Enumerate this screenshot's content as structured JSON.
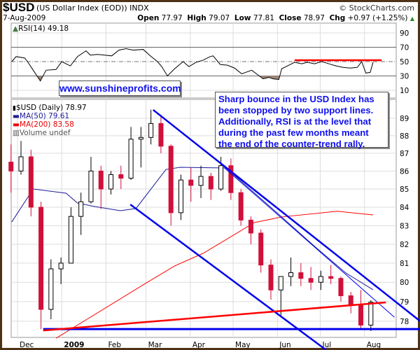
{
  "header": {
    "symbol": "$USD",
    "description": "(US Dollar Index (EOD)) INDX",
    "copyright": "© StockCharts.com",
    "date": "7-Aug-2009",
    "open_label": "Open",
    "open": "77.97",
    "high_label": "High",
    "high": "79.07",
    "low_label": "Low",
    "low": "77.81",
    "close_label": "Close",
    "close": "78.97",
    "chg_label": "Chg",
    "chg": "+0.97 (+1.25%)",
    "chg_arrow": "▲"
  },
  "annotations": {
    "website": "www.sunshineprofits.com",
    "note": "Sharp bounce in the USD Index has been stopped by two support lines. Additionally, RSI is at the level that during the past few months meant the end of the counter-trend rally."
  },
  "colors": {
    "up": "#000000",
    "down": "#d0103a",
    "ma50": "#1a1a99",
    "ma200": "#ff0000",
    "trendline": "#0000ee",
    "support_red": "#ff0000",
    "rsi_shade": "#a08878",
    "frame": "#4e3215"
  },
  "chart_data": [
    {
      "type": "line",
      "title": "RSI(14) 49.18",
      "ylim": [
        0,
        100
      ],
      "yticks": [
        90,
        70,
        50,
        30,
        10
      ],
      "reference_levels": [
        70,
        50,
        30
      ],
      "grid": true,
      "series": [
        {
          "name": "RSI(14) 49.18",
          "points": [
            [
              "2008-11-27",
              50
            ],
            [
              "2008-11-30",
              57
            ],
            [
              "2008-12-06",
              55
            ],
            [
              "2008-12-08",
              50
            ],
            [
              "2008-12-12",
              38
            ],
            [
              "2008-12-17",
              23
            ],
            [
              "2008-12-21",
              38
            ],
            [
              "2008-12-28",
              39
            ],
            [
              "2009-01-01",
              50
            ],
            [
              "2009-01-07",
              44
            ],
            [
              "2009-01-12",
              57
            ],
            [
              "2009-01-18",
              65
            ],
            [
              "2009-01-21",
              59
            ],
            [
              "2009-01-26",
              60
            ],
            [
              "2009-01-31",
              59
            ],
            [
              "2009-02-05",
              58
            ],
            [
              "2009-02-10",
              66
            ],
            [
              "2009-02-15",
              68
            ],
            [
              "2009-02-20",
              66
            ],
            [
              "2009-02-27",
              67
            ],
            [
              "2009-03-04",
              58
            ],
            [
              "2009-03-09",
              50
            ],
            [
              "2009-03-12",
              43
            ],
            [
              "2009-03-16",
              30
            ],
            [
              "2009-03-21",
              40
            ],
            [
              "2009-03-27",
              50
            ],
            [
              "2009-03-31",
              43
            ],
            [
              "2009-04-05",
              49
            ],
            [
              "2009-04-10",
              52
            ],
            [
              "2009-04-15",
              57
            ],
            [
              "2009-04-17",
              58
            ],
            [
              "2009-04-22",
              46
            ],
            [
              "2009-04-27",
              45
            ],
            [
              "2009-05-02",
              41
            ],
            [
              "2009-05-07",
              33
            ],
            [
              "2009-05-14",
              38
            ],
            [
              "2009-05-22",
              26
            ],
            [
              "2009-05-26",
              28
            ],
            [
              "2009-05-29",
              26
            ],
            [
              "2009-06-02",
              25
            ],
            [
              "2009-06-04",
              40
            ],
            [
              "2009-06-08",
              44
            ],
            [
              "2009-06-13",
              49
            ],
            [
              "2009-06-18",
              47
            ],
            [
              "2009-06-22",
              49
            ],
            [
              "2009-06-27",
              47
            ],
            [
              "2009-07-02",
              50
            ],
            [
              "2009-07-07",
              47
            ],
            [
              "2009-07-12",
              44
            ],
            [
              "2009-07-17",
              42
            ],
            [
              "2009-07-22",
              41
            ],
            [
              "2009-07-27",
              42
            ],
            [
              "2009-07-30",
              50
            ],
            [
              "2009-08-02",
              34
            ],
            [
              "2009-08-05",
              35
            ],
            [
              "2009-08-07",
              49.18
            ]
          ]
        }
      ],
      "annotation_lines": [
        {
          "from": [
            "2009-06-13",
            52
          ],
          "to": [
            "2009-08-13",
            52
          ],
          "color": "#ff0000"
        }
      ]
    },
    {
      "type": "candlestick",
      "scale": "log",
      "ylim": [
        77.2,
        90.1
      ],
      "yticks": [
        89,
        88,
        87,
        86,
        85,
        84,
        83,
        82,
        81,
        80,
        79,
        78
      ],
      "xticks": [
        {
          "date": "2008-12-01",
          "label": "Dec"
        },
        {
          "date": "2009-01-01",
          "label": "2009"
        },
        {
          "date": "2009-02-01",
          "label": "Feb"
        },
        {
          "date": "2009-03-01",
          "label": "Mar"
        },
        {
          "date": "2009-04-01",
          "label": "Apr"
        },
        {
          "date": "2009-05-01",
          "label": "May"
        },
        {
          "date": "2009-06-01",
          "label": "Jun"
        },
        {
          "date": "2009-07-01",
          "label": "Jul"
        },
        {
          "date": "2009-08-01",
          "label": "Aug"
        },
        {
          "date": "2009-09-01",
          "label": ""
        }
      ],
      "xlim": [
        "2008-11-25",
        "2009-08-23"
      ],
      "grid": true,
      "legend": {
        "price": "$USD (Daily) 78.97",
        "ma50": "MA(50) 79.61",
        "ma200": "MA(200) 83.58",
        "volume": "Volume undef",
        "placement": "top-left"
      },
      "ohlc": [
        [
          "2008-11-24",
          86.5,
          87.5,
          84.8,
          86.0
        ],
        [
          "2008-12-01",
          86.0,
          87.7,
          85.8,
          86.8
        ],
        [
          "2008-12-08",
          86.8,
          87.2,
          83.5,
          84.0
        ],
        [
          "2008-12-15",
          84.0,
          84.3,
          77.6,
          78.6
        ],
        [
          "2008-12-22",
          78.6,
          81.2,
          78.1,
          80.7
        ],
        [
          "2008-12-29",
          80.7,
          81.3,
          79.9,
          81.0
        ],
        [
          "2009-01-05",
          81.0,
          84.0,
          81.0,
          83.5
        ],
        [
          "2009-01-12",
          83.5,
          84.8,
          82.5,
          84.3
        ],
        [
          "2009-01-19",
          84.3,
          86.8,
          84.2,
          86.0
        ],
        [
          "2009-01-26",
          86.0,
          86.3,
          83.9,
          85.0
        ],
        [
          "2009-02-02",
          85.0,
          86.0,
          84.7,
          85.8
        ],
        [
          "2009-02-09",
          85.8,
          86.3,
          85.0,
          85.6
        ],
        [
          "2009-02-16",
          85.6,
          88.5,
          85.5,
          87.8
        ],
        [
          "2009-02-23",
          87.8,
          88.5,
          86.2,
          87.9
        ],
        [
          "2009-03-02",
          87.9,
          89.5,
          87.5,
          88.7
        ],
        [
          "2009-03-09",
          88.7,
          89.2,
          87.0,
          87.4
        ],
        [
          "2009-03-16",
          87.4,
          87.5,
          83.0,
          83.7
        ],
        [
          "2009-03-23",
          83.7,
          85.8,
          83.3,
          85.5
        ],
        [
          "2009-03-30",
          85.5,
          86.2,
          84.3,
          85.2
        ],
        [
          "2009-04-06",
          85.2,
          86.3,
          84.5,
          85.7
        ],
        [
          "2009-04-13",
          85.7,
          85.9,
          84.4,
          85.0
        ],
        [
          "2009-04-20",
          85.0,
          86.8,
          84.9,
          86.3
        ],
        [
          "2009-04-27",
          86.3,
          86.7,
          84.4,
          84.8
        ],
        [
          "2009-05-04",
          84.8,
          85.0,
          83.0,
          83.3
        ],
        [
          "2009-05-11",
          83.3,
          83.5,
          82.0,
          82.6
        ],
        [
          "2009-05-18",
          82.6,
          82.8,
          80.5,
          80.9
        ],
        [
          "2009-05-25",
          80.9,
          81.2,
          79.1,
          79.6
        ],
        [
          "2009-06-01",
          79.6,
          80.3,
          78.3,
          80.3
        ],
        [
          "2009-06-08",
          80.3,
          81.3,
          79.8,
          80.5
        ],
        [
          "2009-06-15",
          80.5,
          81.0,
          79.8,
          80.2
        ],
        [
          "2009-06-22",
          80.2,
          80.8,
          79.6,
          80.0
        ],
        [
          "2009-06-29",
          80.0,
          80.6,
          79.6,
          80.3
        ],
        [
          "2009-07-06",
          80.3,
          80.9,
          79.9,
          80.2
        ],
        [
          "2009-07-13",
          80.2,
          80.3,
          79.0,
          79.3
        ],
        [
          "2009-07-20",
          79.3,
          79.5,
          78.4,
          78.8
        ],
        [
          "2009-07-27",
          78.8,
          79.6,
          77.6,
          77.8
        ],
        [
          "2009-08-03",
          77.8,
          79.07,
          77.5,
          78.97
        ]
      ],
      "ma50": [
        [
          "2008-11-27",
          83.2
        ],
        [
          "2008-12-12",
          85.0
        ],
        [
          "2009-01-04",
          84.77
        ],
        [
          "2009-01-12",
          84.23
        ],
        [
          "2009-01-24",
          84.04
        ],
        [
          "2009-02-11",
          83.81
        ],
        [
          "2009-02-22",
          83.93
        ],
        [
          "2009-03-15",
          86.09
        ],
        [
          "2009-03-25",
          86.21
        ],
        [
          "2009-04-26",
          86.17
        ],
        [
          "2009-06-03",
          83.54
        ],
        [
          "2009-06-27",
          81.89
        ],
        [
          "2009-07-19",
          80.48
        ],
        [
          "2009-08-07",
          79.61
        ]
      ],
      "ma200": [
        [
          "2008-12-28",
          77.14
        ],
        [
          "2009-03-02",
          80.0
        ],
        [
          "2009-03-21",
          80.85
        ],
        [
          "2009-04-10",
          81.52
        ],
        [
          "2009-05-16",
          83.17
        ],
        [
          "2009-06-04",
          83.47
        ],
        [
          "2009-07-13",
          83.78
        ],
        [
          "2009-08-07",
          83.58
        ]
      ],
      "trendlines": [
        {
          "from": [
            "2009-03-06",
            89.49
          ],
          "to": [
            "2009-09-09",
            78.0
          ],
          "color": "#0000ee",
          "width": 2.5
        },
        {
          "from": [
            "2009-04-25",
            86.17
          ],
          "to": [
            "2009-08-22",
            78.2
          ],
          "color": "#0000ee",
          "width": 1
        },
        {
          "from": [
            "2009-02-18",
            84.15
          ],
          "to": [
            "2009-07-05",
            76.56
          ],
          "color": "#0000ee",
          "width": 2.5
        },
        {
          "from": [
            "2008-12-19",
            77.6
          ],
          "to": [
            "2009-09-09",
            77.6
          ],
          "color": "#0000ee",
          "width": 3
        },
        {
          "from": [
            "2008-12-19",
            77.53
          ],
          "to": [
            "2009-08-16",
            78.96
          ],
          "color": "#ff0000",
          "width": 2.5
        }
      ]
    }
  ]
}
